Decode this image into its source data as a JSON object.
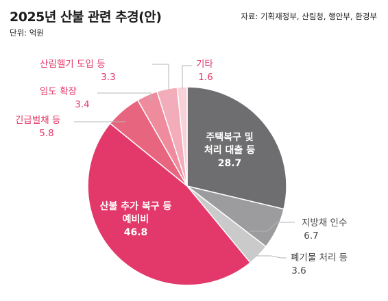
{
  "title": "2025년 산불 관련 추경(안)",
  "unit": "단위: 억원",
  "source": "자료: 기획재정부, 산림청, 행안부, 환경부",
  "chart_data": {
    "type": "pie",
    "title": "2025년 산불 관련 추경(안)",
    "unit": "억원",
    "start": "12 o'clock, clockwise",
    "slices": [
      {
        "label": "주택복구 및 처리 대출 등",
        "lines": [
          "주택복구 및",
          "처리 대출 등"
        ],
        "value": 28.7,
        "display": "28.7",
        "color": "#6e6d6f",
        "text_color": "#ffffff"
      },
      {
        "label": "지방채 인수",
        "lines": [
          "지방채 인수"
        ],
        "value": 6.7,
        "display": "6.7",
        "color": "#9c9b9d",
        "text_color": "#444444"
      },
      {
        "label": "폐기물 처리 등",
        "lines": [
          "폐기물 처리 등"
        ],
        "value": 3.6,
        "display": "3.6",
        "color": "#cbcacb",
        "text_color": "#444444"
      },
      {
        "label": "산불 추가 복구 등 예비비",
        "lines": [
          "산불 추가 복구 등",
          "예비비"
        ],
        "value": 46.8,
        "display": "46.8",
        "color": "#e3396a",
        "text_color": "#ffffff"
      },
      {
        "label": "긴급벌채 등",
        "lines": [
          "긴급벌채 등"
        ],
        "value": 5.8,
        "display": "5.8",
        "color": "#e8657f",
        "text_color": "#e3396a"
      },
      {
        "label": "임도 확장",
        "lines": [
          "임도 확장"
        ],
        "value": 3.4,
        "display": "3.4",
        "color": "#ee8c9e",
        "text_color": "#e3396a"
      },
      {
        "label": "산림헬기 도입 등",
        "lines": [
          "산림헬기 도입 등"
        ],
        "value": 3.3,
        "display": "3.3",
        "color": "#f3adba",
        "text_color": "#e3396a"
      },
      {
        "label": "기타",
        "lines": [
          "기타"
        ],
        "value": 1.6,
        "display": "1.6",
        "color": "#f8d2d9",
        "text_color": "#e3396a"
      }
    ]
  }
}
